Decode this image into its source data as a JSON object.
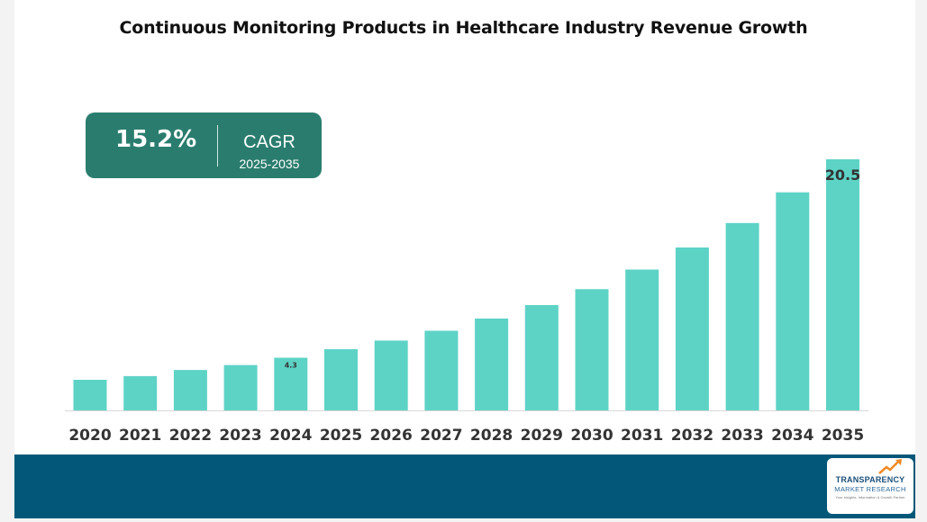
{
  "title": "Continuous Monitoring Products in Healthcare Industry Revenue Growth",
  "cagr": {
    "value": "15.2%",
    "label": "CAGR",
    "period": "2025-2035"
  },
  "logo": {
    "line1": "TRANSPARENCY",
    "line2": "MARKET RESEARCH",
    "line3": "Your Insights, Information & Growth Partner"
  },
  "colors": {
    "bar": "#5dd3c6",
    "cagr_box": "#2a7d6e",
    "footer": "#03587a"
  },
  "chart_data": {
    "type": "bar",
    "categories": [
      "2020",
      "2021",
      "2022",
      "2023",
      "2024",
      "2025",
      "2026",
      "2027",
      "2028",
      "2029",
      "2030",
      "2031",
      "2032",
      "2033",
      "2034",
      "2035"
    ],
    "values": [
      2.5,
      2.8,
      3.3,
      3.7,
      4.3,
      5.0,
      5.7,
      6.5,
      7.5,
      8.6,
      9.9,
      11.5,
      13.3,
      15.3,
      17.8,
      20.5
    ],
    "data_labels": [
      {
        "category": "2024",
        "text": "4.3"
      },
      {
        "category": "2035",
        "text": "20.5"
      }
    ],
    "xlabel": "",
    "ylabel": "",
    "ylim": [
      0,
      20.5
    ],
    "grid": false,
    "legend": "none"
  }
}
